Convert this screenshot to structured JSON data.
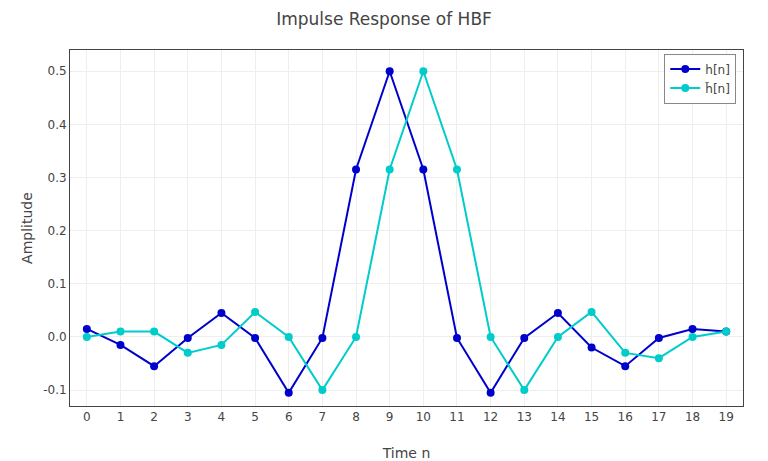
{
  "chart_data": {
    "type": "line",
    "title": "Impulse Response of HBF",
    "xlabel": "Time n",
    "ylabel": "Amplitude",
    "x": [
      0,
      1,
      2,
      3,
      4,
      5,
      6,
      7,
      8,
      9,
      10,
      11,
      12,
      13,
      14,
      15,
      16,
      17,
      18,
      19
    ],
    "series": [
      {
        "name": "h[n]",
        "color": "#0000cc",
        "marker": "circle",
        "line_style": "solid",
        "values": [
          0.015,
          -0.015,
          -0.055,
          -0.002,
          0.045,
          -0.002,
          -0.105,
          -0.002,
          0.315,
          0.5,
          0.315,
          -0.002,
          -0.105,
          -0.002,
          0.045,
          -0.02,
          -0.055,
          -0.002,
          0.015,
          0.01
        ]
      },
      {
        "name": "h̃[n]",
        "color": "#00cccc",
        "marker": "circle",
        "line_style": "solid",
        "values": [
          0.0,
          0.01,
          0.01,
          -0.03,
          -0.015,
          0.047,
          -0.0,
          -0.1,
          0.0,
          0.315,
          0.5,
          0.315,
          -0.0,
          -0.1,
          0.0,
          0.047,
          -0.03,
          -0.04,
          -0.0,
          0.01
        ]
      }
    ],
    "xlim": [
      -0.5,
      19.5
    ],
    "ylim": [
      -0.13,
      0.54
    ],
    "xticks": [
      0,
      1,
      2,
      3,
      4,
      5,
      6,
      7,
      8,
      9,
      10,
      11,
      12,
      13,
      14,
      15,
      16,
      17,
      18,
      19
    ],
    "yticks": [
      -0.1,
      {
        "value": 0,
        "label": "0.0"
      },
      0.1,
      0.2,
      0.3,
      0.4,
      0.5
    ],
    "grid": true,
    "legend": "upper right"
  }
}
